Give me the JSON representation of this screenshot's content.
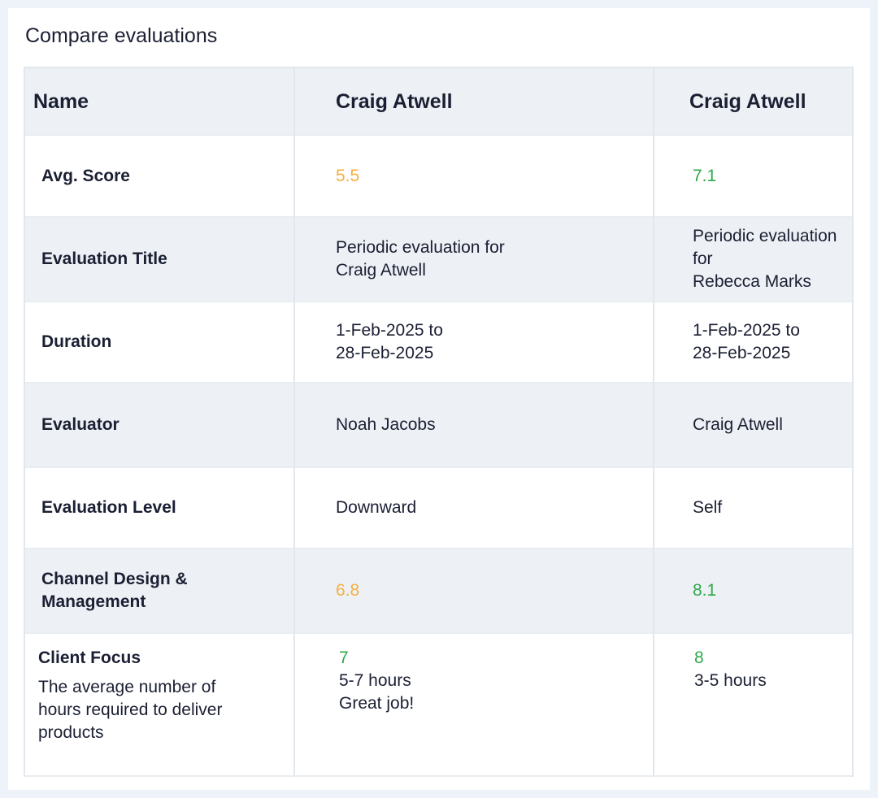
{
  "title": "Compare evaluations",
  "colors": {
    "score_mid": "#f5af3f",
    "score_good": "#2fa84a",
    "page_bg": "#eef2f9",
    "row_alt": "#edf1f5"
  },
  "header": {
    "label": "Name",
    "col1": "Craig Atwell",
    "col2": "Craig Atwell"
  },
  "rows": {
    "avg_score": {
      "label": "Avg. Score",
      "col1": "5.5",
      "col2": "7.1"
    },
    "evaluation_title": {
      "label": "Evaluation Title",
      "col1": [
        "Periodic evaluation for",
        "Craig Atwell"
      ],
      "col2": [
        "Periodic evaluation for",
        "Rebecca Marks"
      ]
    },
    "duration": {
      "label": "Duration",
      "col1": [
        "1-Feb-2025 to",
        "28-Feb-2025"
      ],
      "col2": [
        "1-Feb-2025 to",
        "28-Feb-2025"
      ]
    },
    "evaluator": {
      "label": "Evaluator",
      "col1": "Noah Jacobs",
      "col2": "Craig Atwell"
    },
    "evaluation_level": {
      "label": "Evaluation Level",
      "col1": "Downward",
      "col2": "Self"
    },
    "channel_design": {
      "label": [
        "Channel Design &",
        "Management"
      ],
      "col1": "6.8",
      "col2": "8.1"
    },
    "client_focus": {
      "label": "Client Focus",
      "description": [
        "The average number of",
        "hours required to deliver",
        "products"
      ],
      "col1": {
        "score": "7",
        "range": "5-7 hours",
        "comment": "Great job!"
      },
      "col2": {
        "score": "8",
        "range": "3-5 hours"
      }
    }
  }
}
